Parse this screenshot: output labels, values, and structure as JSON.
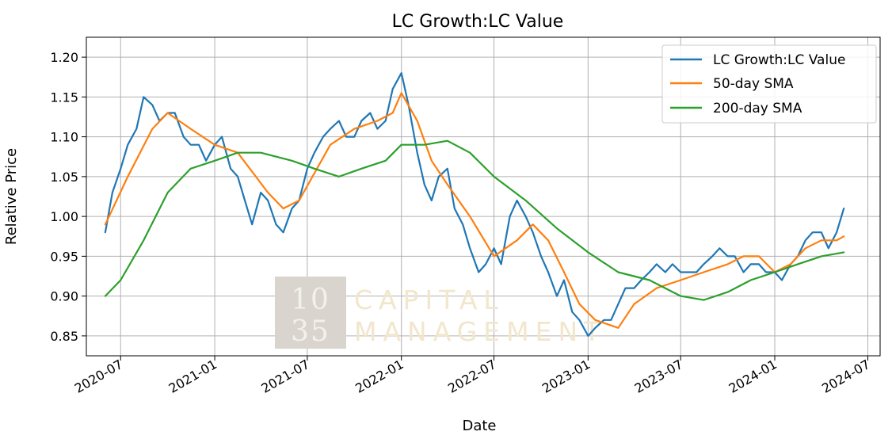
{
  "chart_data": {
    "type": "line",
    "title": "LC Growth:LC Value",
    "xlabel": "Date",
    "ylabel": "Relative Price",
    "xlim": [
      "2020-04-25",
      "2024-07-25"
    ],
    "ylim": [
      0.825,
      1.225
    ],
    "grid": true,
    "legend_position": "top-right",
    "x_ticks": [
      "2020-07",
      "2021-01",
      "2021-07",
      "2022-01",
      "2022-07",
      "2023-01",
      "2023-07",
      "2024-01",
      "2024-07"
    ],
    "y_ticks": [
      "0.85",
      "0.90",
      "0.95",
      "1.00",
      "1.05",
      "1.10",
      "1.15",
      "1.20"
    ],
    "watermark": {
      "number_line1": "10",
      "number_line2": "35",
      "text_line1": "CAPITAL",
      "text_line2": "MANAGEMENT"
    },
    "series": [
      {
        "name": "LC Growth:LC Value",
        "color": "#1f77b4",
        "x": [
          "2020-06-01",
          "2020-06-15",
          "2020-07-01",
          "2020-07-15",
          "2020-08-01",
          "2020-08-15",
          "2020-09-01",
          "2020-09-15",
          "2020-10-01",
          "2020-10-15",
          "2020-11-01",
          "2020-11-15",
          "2020-12-01",
          "2020-12-15",
          "2021-01-01",
          "2021-01-15",
          "2021-02-01",
          "2021-02-15",
          "2021-03-01",
          "2021-03-15",
          "2021-04-01",
          "2021-04-15",
          "2021-05-01",
          "2021-05-15",
          "2021-06-01",
          "2021-06-15",
          "2021-07-01",
          "2021-07-15",
          "2021-08-01",
          "2021-08-15",
          "2021-09-01",
          "2021-09-15",
          "2021-10-01",
          "2021-10-15",
          "2021-11-01",
          "2021-11-15",
          "2021-12-01",
          "2021-12-15",
          "2022-01-01",
          "2022-01-15",
          "2022-02-01",
          "2022-02-15",
          "2022-03-01",
          "2022-03-15",
          "2022-04-01",
          "2022-04-15",
          "2022-05-01",
          "2022-05-15",
          "2022-06-01",
          "2022-06-15",
          "2022-07-01",
          "2022-07-15",
          "2022-08-01",
          "2022-08-15",
          "2022-09-01",
          "2022-09-15",
          "2022-10-01",
          "2022-10-15",
          "2022-11-01",
          "2022-11-15",
          "2022-12-01",
          "2022-12-15",
          "2023-01-01",
          "2023-01-15",
          "2023-02-01",
          "2023-02-15",
          "2023-03-01",
          "2023-03-15",
          "2023-04-01",
          "2023-04-15",
          "2023-05-01",
          "2023-05-15",
          "2023-06-01",
          "2023-06-15",
          "2023-07-01",
          "2023-07-15",
          "2023-08-01",
          "2023-08-15",
          "2023-09-01",
          "2023-09-15",
          "2023-10-01",
          "2023-10-15",
          "2023-11-01",
          "2023-11-15",
          "2023-12-01",
          "2023-12-15",
          "2024-01-01",
          "2024-01-15",
          "2024-02-01",
          "2024-02-15",
          "2024-03-01",
          "2024-03-15",
          "2024-04-01",
          "2024-04-15",
          "2024-05-01",
          "2024-05-15"
        ],
        "values": [
          0.98,
          1.03,
          1.06,
          1.09,
          1.11,
          1.15,
          1.14,
          1.12,
          1.13,
          1.13,
          1.1,
          1.09,
          1.09,
          1.07,
          1.09,
          1.1,
          1.06,
          1.05,
          1.02,
          0.99,
          1.03,
          1.02,
          0.99,
          0.98,
          1.01,
          1.02,
          1.06,
          1.08,
          1.1,
          1.11,
          1.12,
          1.1,
          1.1,
          1.12,
          1.13,
          1.11,
          1.12,
          1.16,
          1.18,
          1.14,
          1.08,
          1.04,
          1.02,
          1.05,
          1.06,
          1.01,
          0.99,
          0.96,
          0.93,
          0.94,
          0.96,
          0.94,
          1.0,
          1.02,
          1.0,
          0.98,
          0.95,
          0.93,
          0.9,
          0.92,
          0.88,
          0.87,
          0.85,
          0.86,
          0.87,
          0.87,
          0.89,
          0.91,
          0.91,
          0.92,
          0.93,
          0.94,
          0.93,
          0.94,
          0.93,
          0.93,
          0.93,
          0.94,
          0.95,
          0.96,
          0.95,
          0.95,
          0.93,
          0.94,
          0.94,
          0.93,
          0.93,
          0.92,
          0.94,
          0.95,
          0.97,
          0.98,
          0.98,
          0.96,
          0.98,
          1.01
        ]
      },
      {
        "name": "50-day SMA",
        "color": "#ff7f0e",
        "x": [
          "2020-06-01",
          "2020-07-15",
          "2020-09-01",
          "2020-10-01",
          "2020-11-15",
          "2021-01-01",
          "2021-02-15",
          "2021-04-15",
          "2021-05-15",
          "2021-06-15",
          "2021-08-15",
          "2021-10-01",
          "2021-11-15",
          "2021-12-15",
          "2022-01-01",
          "2022-02-01",
          "2022-03-01",
          "2022-04-01",
          "2022-05-15",
          "2022-07-01",
          "2022-08-15",
          "2022-09-15",
          "2022-10-15",
          "2022-11-15",
          "2022-12-15",
          "2023-01-15",
          "2023-03-01",
          "2023-04-01",
          "2023-05-15",
          "2023-07-01",
          "2023-08-15",
          "2023-10-01",
          "2023-11-01",
          "2023-12-01",
          "2024-01-01",
          "2024-02-01",
          "2024-03-01",
          "2024-04-01",
          "2024-05-01",
          "2024-05-15"
        ],
        "values": [
          0.99,
          1.05,
          1.11,
          1.13,
          1.11,
          1.09,
          1.08,
          1.03,
          1.01,
          1.02,
          1.09,
          1.11,
          1.12,
          1.13,
          1.155,
          1.12,
          1.07,
          1.04,
          1.0,
          0.95,
          0.97,
          0.99,
          0.97,
          0.93,
          0.89,
          0.87,
          0.86,
          0.89,
          0.91,
          0.92,
          0.93,
          0.94,
          0.95,
          0.95,
          0.93,
          0.94,
          0.96,
          0.97,
          0.97,
          0.975
        ]
      },
      {
        "name": "200-day SMA",
        "color": "#2ca02c",
        "x": [
          "2020-06-01",
          "2020-07-01",
          "2020-08-15",
          "2020-10-01",
          "2020-11-15",
          "2021-01-01",
          "2021-02-15",
          "2021-04-01",
          "2021-06-01",
          "2021-07-15",
          "2021-09-01",
          "2021-10-15",
          "2021-12-01",
          "2022-01-01",
          "2022-02-15",
          "2022-04-01",
          "2022-05-15",
          "2022-07-01",
          "2022-09-01",
          "2022-11-01",
          "2023-01-01",
          "2023-03-01",
          "2023-05-01",
          "2023-07-01",
          "2023-08-15",
          "2023-10-01",
          "2023-11-15",
          "2024-01-01",
          "2024-02-15",
          "2024-04-01",
          "2024-05-15"
        ],
        "values": [
          0.9,
          0.92,
          0.97,
          1.03,
          1.06,
          1.07,
          1.08,
          1.08,
          1.07,
          1.06,
          1.05,
          1.06,
          1.07,
          1.09,
          1.09,
          1.095,
          1.08,
          1.05,
          1.02,
          0.985,
          0.955,
          0.93,
          0.92,
          0.9,
          0.895,
          0.905,
          0.92,
          0.93,
          0.94,
          0.95,
          0.955
        ]
      }
    ]
  }
}
